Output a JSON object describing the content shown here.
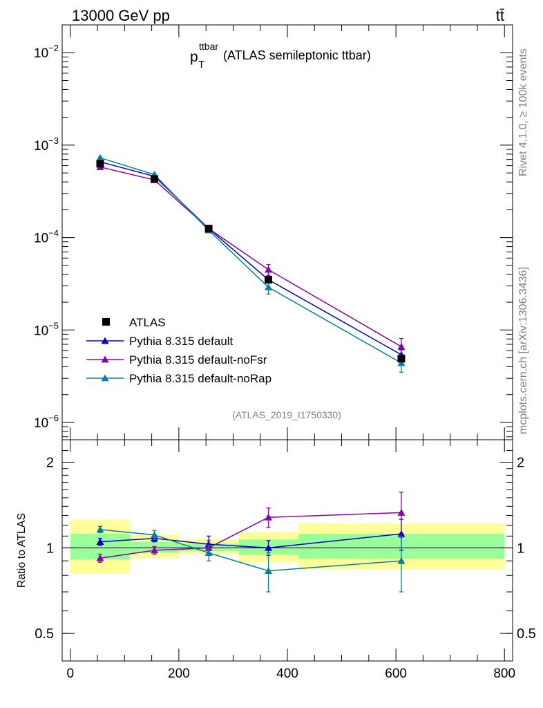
{
  "header": {
    "left": "13000 GeV pp",
    "right": "tt̄"
  },
  "side_labels": {
    "rivet": "Rivet 4.1.0, ≥ 100k events",
    "mcplots": "mcplots.cern.ch [arXiv:1306.3436]"
  },
  "analysis_id": "(ATLAS_2019_I1750330)",
  "chart_data": {
    "type": "line",
    "title": {
      "main": "p",
      "sub": "T",
      "sup": "ttbar",
      "rest": " (ATLAS semileptonic ttbar)"
    },
    "x": [
      55,
      155,
      255,
      365,
      610
    ],
    "x_edges": [
      0,
      110,
      200,
      310,
      420,
      800
    ],
    "xlim": [
      -15,
      815
    ],
    "xticks": [
      "0",
      "200",
      "400",
      "600",
      "800"
    ],
    "xtick_values": [
      0,
      200,
      400,
      600,
      800
    ],
    "xlabel": "",
    "main_panel": {
      "yscale": "log",
      "ylim": [
        6.5e-07,
        0.02
      ],
      "ytick_values": [
        1e-06,
        1e-05,
        0.0001,
        0.001,
        0.01
      ],
      "ytick_exponents": [
        "−6",
        "−5",
        "−4",
        "−3",
        "−2"
      ],
      "ytick_base": "10",
      "data": {
        "name": "ATLAS",
        "values": [
          0.00063,
          0.00043,
          0.000125,
          3.5e-05,
          4.9e-06
        ]
      },
      "series": [
        {
          "name": "Pythia 8.315 default",
          "color": "#0000cc",
          "values": [
            0.00066,
            0.00046,
            0.000125,
            3.5e-05,
            5.4e-06
          ],
          "err_up": [
            1.2e-05,
            1.2e-05,
            6e-06,
            2.5e-06,
            7e-07
          ],
          "err_dn": [
            1.2e-05,
            1.2e-05,
            6e-06,
            2.5e-06,
            7e-07
          ]
        },
        {
          "name": "Pythia 8.315 default-noFsr",
          "color": "#8800aa",
          "values": [
            0.00058,
            0.00042,
            0.000125,
            4.5e-05,
            6.6e-06
          ],
          "err_up": [
            1.2e-05,
            1.2e-05,
            7e-06,
            6e-06,
            1.5e-06
          ],
          "err_dn": [
            1.2e-05,
            1.2e-05,
            7e-06,
            6e-06,
            1.5e-06
          ]
        },
        {
          "name": "Pythia 8.315 default-noRap",
          "color": "#0080a0",
          "values": [
            0.00073,
            0.00048,
            0.00012,
            2.9e-05,
            4.4e-06
          ],
          "err_up": [
            1.3e-05,
            1.3e-05,
            7e-06,
            4.5e-06,
            9e-07
          ],
          "err_dn": [
            1.3e-05,
            1.3e-05,
            7e-06,
            4.5e-06,
            9e-07
          ]
        }
      ]
    },
    "ratio_panel": {
      "ylabel": "Ratio to ATLAS",
      "yscale": "log",
      "ylim": [
        0.4,
        2.4
      ],
      "yticks": [
        "2",
        "1",
        "0.5"
      ],
      "ytick_values": [
        2,
        1,
        0.5
      ],
      "band_yellow": [
        [
          0.81,
          1.26
        ],
        [
          0.92,
          1.11
        ],
        [
          0.95,
          1.07
        ],
        [
          0.89,
          1.14
        ],
        [
          0.84,
          1.22
        ]
      ],
      "band_green": [
        [
          0.91,
          1.12
        ],
        [
          0.96,
          1.05
        ],
        [
          0.975,
          1.035
        ],
        [
          0.945,
          1.07
        ],
        [
          0.915,
          1.12
        ]
      ],
      "series": [
        {
          "name": "Pythia 8.315 default",
          "color": "#0000cc",
          "values": [
            1.05,
            1.08,
            1.03,
            1.0,
            1.12
          ],
          "err_up": [
            0.03,
            0.03,
            0.07,
            0.06,
            0.14
          ],
          "err_dn": [
            0.03,
            0.03,
            0.07,
            0.06,
            0.14
          ]
        },
        {
          "name": "Pythia 8.315 default-noFsr",
          "color": "#8800aa",
          "values": [
            0.92,
            0.98,
            1.0,
            1.28,
            1.33
          ],
          "err_up": [
            0.03,
            0.03,
            0.06,
            0.1,
            0.24
          ],
          "err_dn": [
            0.03,
            0.03,
            0.06,
            0.1,
            0.24
          ]
        },
        {
          "name": "Pythia 8.315 default-noRap",
          "color": "#0080a0",
          "values": [
            1.16,
            1.11,
            0.96,
            0.83,
            0.9
          ],
          "err_up": [
            0.03,
            0.04,
            0.06,
            0.13,
            0.2
          ],
          "err_dn": [
            0.03,
            0.04,
            0.06,
            0.13,
            0.2
          ]
        }
      ]
    },
    "legend_position": "lower-left"
  }
}
